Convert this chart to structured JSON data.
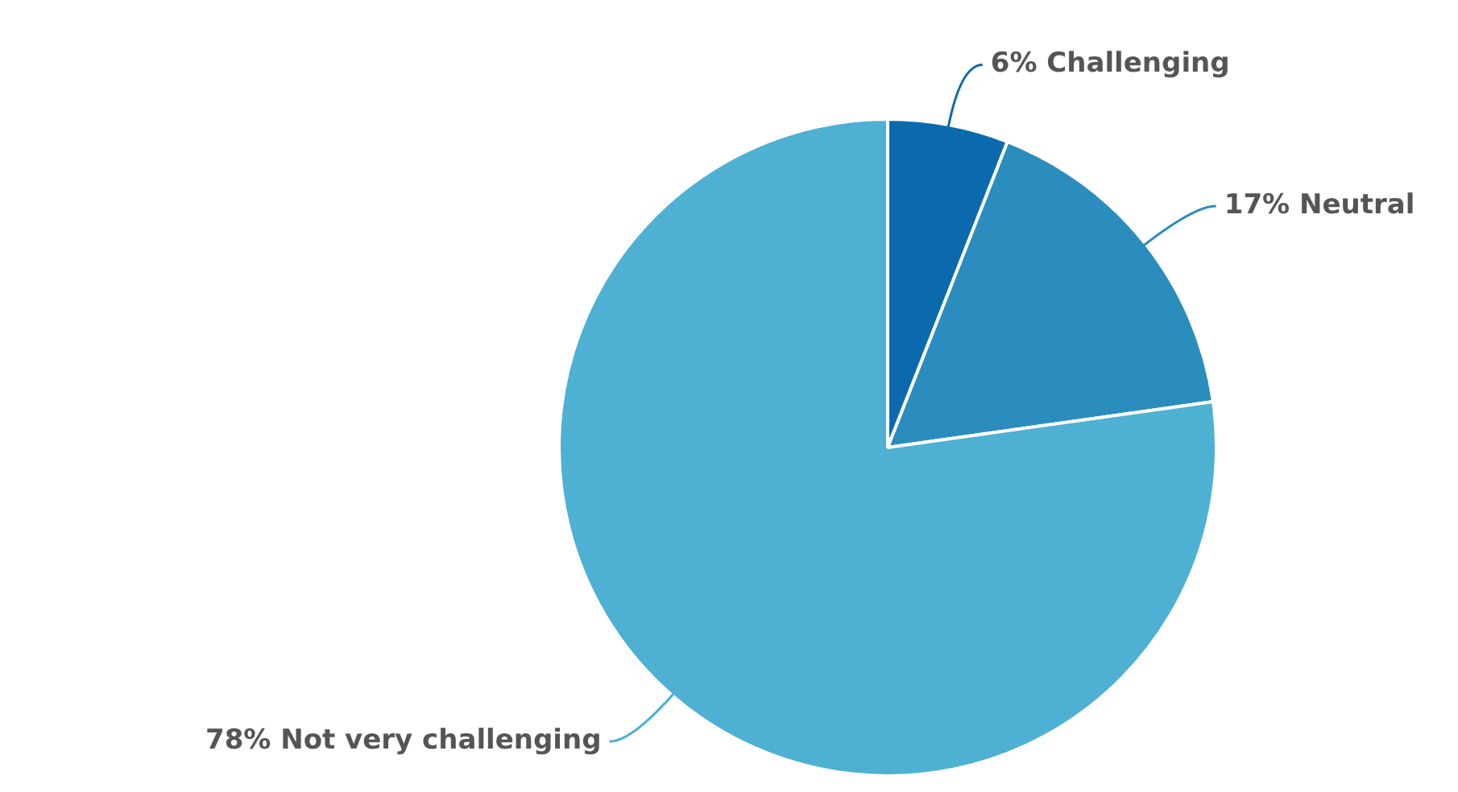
{
  "chart_data": {
    "type": "pie",
    "categories": [
      "Challenging",
      "Neutral",
      "Not very challenging"
    ],
    "values": [
      6,
      17,
      78
    ],
    "value_labels": [
      "6%",
      "17%",
      "78%"
    ],
    "colors": [
      "#0b6aad",
      "#2b8cbe",
      "#4eb0d3"
    ],
    "legend": false
  }
}
